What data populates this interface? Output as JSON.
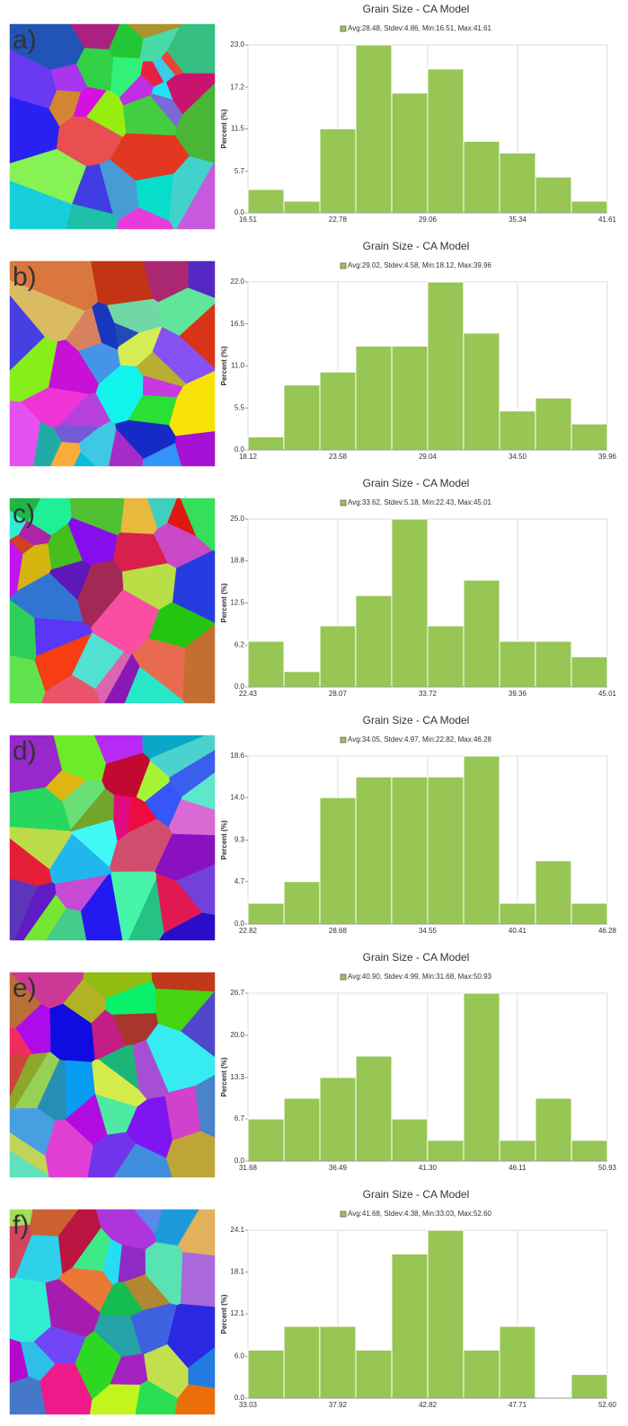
{
  "chart_data": [
    {
      "type": "histogram",
      "label": "a)",
      "title": "Grain Size - CA Model",
      "ylabel": "Percent (%)",
      "color": "#97c655",
      "grid": "x",
      "series": [
        {
          "name": "Avg:28.48, Stdev:4.86, Min:16.51, Max:41.61",
          "color": "#97c655",
          "values": [
            3.2,
            1.6,
            11.5,
            23.0,
            16.4,
            19.7,
            9.8,
            8.2,
            4.9,
            1.6
          ]
        }
      ],
      "bins": [
        16.51,
        19.02,
        21.53,
        24.04,
        26.55,
        29.06,
        31.57,
        34.08,
        36.59,
        39.1,
        41.61
      ],
      "xlim": [
        16.51,
        41.61
      ],
      "xticks": [
        16.51,
        22.78,
        29.06,
        35.34,
        41.61
      ],
      "ylim": [
        0,
        23
      ],
      "yticks": [
        {
          "value": 0,
          "label": "0.0"
        },
        5.7,
        11.5,
        17.2,
        {
          "value": 23,
          "label": "23.0"
        }
      ]
    },
    {
      "type": "histogram",
      "label": "b)",
      "title": "Grain Size - CA Model",
      "ylabel": "Percent (%)",
      "color": "#97c655",
      "grid": "x",
      "series": [
        {
          "name": "Avg:29.02, Stdev:4.58, Min:18.12, Max:39.96",
          "color": "#97c655",
          "values": [
            1.7,
            8.5,
            10.2,
            13.6,
            13.6,
            22.0,
            15.3,
            5.1,
            6.8,
            3.4
          ]
        }
      ],
      "bins": [
        18.12,
        20.3,
        22.49,
        24.67,
        26.86,
        29.04,
        31.22,
        33.41,
        35.59,
        37.78,
        39.96
      ],
      "xlim": [
        18.12,
        39.96
      ],
      "xticks": [
        18.12,
        23.58,
        29.04,
        {
          "value": 34.5,
          "label": "34.50"
        },
        39.96
      ],
      "ylim": [
        0,
        22
      ],
      "yticks": [
        {
          "value": 0,
          "label": "0.0"
        },
        5.5,
        {
          "value": 11,
          "label": "11.0"
        },
        16.5,
        {
          "value": 22,
          "label": "22.0"
        }
      ]
    },
    {
      "type": "histogram",
      "label": "c)",
      "title": "Grain Size - CA Model",
      "ylabel": "Percent (%)",
      "color": "#97c655",
      "grid": "x",
      "series": [
        {
          "name": "Avg:33.62, Stdev:5.18, Min:22.43, Max:45.01",
          "color": "#97c655",
          "values": [
            6.8,
            2.3,
            9.1,
            13.6,
            25.0,
            9.1,
            15.9,
            6.8,
            6.8,
            4.5
          ]
        }
      ],
      "bins": [
        22.43,
        24.69,
        26.95,
        29.2,
        31.46,
        33.72,
        35.98,
        38.24,
        40.49,
        42.75,
        45.01
      ],
      "xlim": [
        22.43,
        45.01
      ],
      "xticks": [
        22.43,
        28.07,
        33.72,
        39.36,
        45.01
      ],
      "ylim": [
        0,
        25
      ],
      "yticks": [
        {
          "value": 0,
          "label": "0.0"
        },
        6.2,
        12.5,
        18.8,
        {
          "value": 25,
          "label": "25.0"
        }
      ]
    },
    {
      "type": "histogram",
      "label": "d)",
      "title": "Grain Size - CA Model",
      "ylabel": "Percent (%)",
      "color": "#97c655",
      "grid": "x",
      "series": [
        {
          "name": "Avg:34.05, Stdev:4.97, Min:22.82, Max:46.28",
          "color": "#97c655",
          "values": [
            2.3,
            4.7,
            14.0,
            16.3,
            16.3,
            16.3,
            18.6,
            2.3,
            7.0,
            2.3
          ]
        }
      ],
      "bins": [
        22.82,
        25.17,
        27.51,
        29.86,
        32.2,
        34.55,
        36.9,
        39.24,
        41.59,
        43.93,
        46.28
      ],
      "xlim": [
        22.82,
        46.28
      ],
      "xticks": [
        22.82,
        28.68,
        34.55,
        40.41,
        46.28
      ],
      "ylim": [
        0,
        18.6
      ],
      "yticks": [
        {
          "value": 0,
          "label": "0.0"
        },
        4.7,
        9.3,
        {
          "value": 14,
          "label": "14.0"
        },
        18.6
      ]
    },
    {
      "type": "histogram",
      "label": "e)",
      "title": "Grain Size - CA Model",
      "ylabel": "Percent (%)",
      "color": "#97c655",
      "grid": "x",
      "series": [
        {
          "name": "Avg:40.90, Stdev:4.99, Min:31.68, Max:50.93",
          "color": "#97c655",
          "values": [
            6.7,
            10.0,
            13.3,
            16.7,
            6.7,
            3.3,
            26.7,
            3.3,
            10.0,
            3.3
          ]
        }
      ],
      "bins": [
        31.68,
        33.61,
        35.53,
        37.46,
        39.38,
        41.3,
        43.23,
        45.16,
        47.08,
        49.01,
        50.93
      ],
      "xlim": [
        31.68,
        50.93
      ],
      "xticks": [
        31.68,
        36.49,
        {
          "value": 41.3,
          "label": "41.30"
        },
        46.11,
        50.93
      ],
      "ylim": [
        0,
        26.7
      ],
      "yticks": [
        {
          "value": 0,
          "label": "0.0"
        },
        6.7,
        13.3,
        {
          "value": 20,
          "label": "20.0"
        },
        26.7
      ]
    },
    {
      "type": "histogram",
      "label": "f)",
      "title": "Grain Size - CA Model",
      "ylabel": "Percent (%)",
      "color": "#97c655",
      "grid": "x",
      "series": [
        {
          "name": "Avg:41.68, Stdev:4.38, Min:33.03, Max:52.60",
          "color": "#97c655",
          "values": [
            6.9,
            10.3,
            10.3,
            6.9,
            20.7,
            24.1,
            6.9,
            10.3,
            0,
            3.4
          ]
        }
      ],
      "bins": [
        33.03,
        34.99,
        36.94,
        38.9,
        40.86,
        42.82,
        44.77,
        46.73,
        48.68,
        50.64,
        52.6
      ],
      "xlim": [
        33.03,
        52.6
      ],
      "xticks": [
        33.03,
        37.92,
        42.82,
        47.71,
        {
          "value": 52.6,
          "label": "52.60"
        }
      ],
      "ylim": [
        0,
        24.1
      ],
      "yticks": [
        {
          "value": 0,
          "label": "0.0"
        },
        {
          "value": 6,
          "label": "6.0"
        },
        12.1,
        18.1,
        24.1
      ]
    }
  ]
}
